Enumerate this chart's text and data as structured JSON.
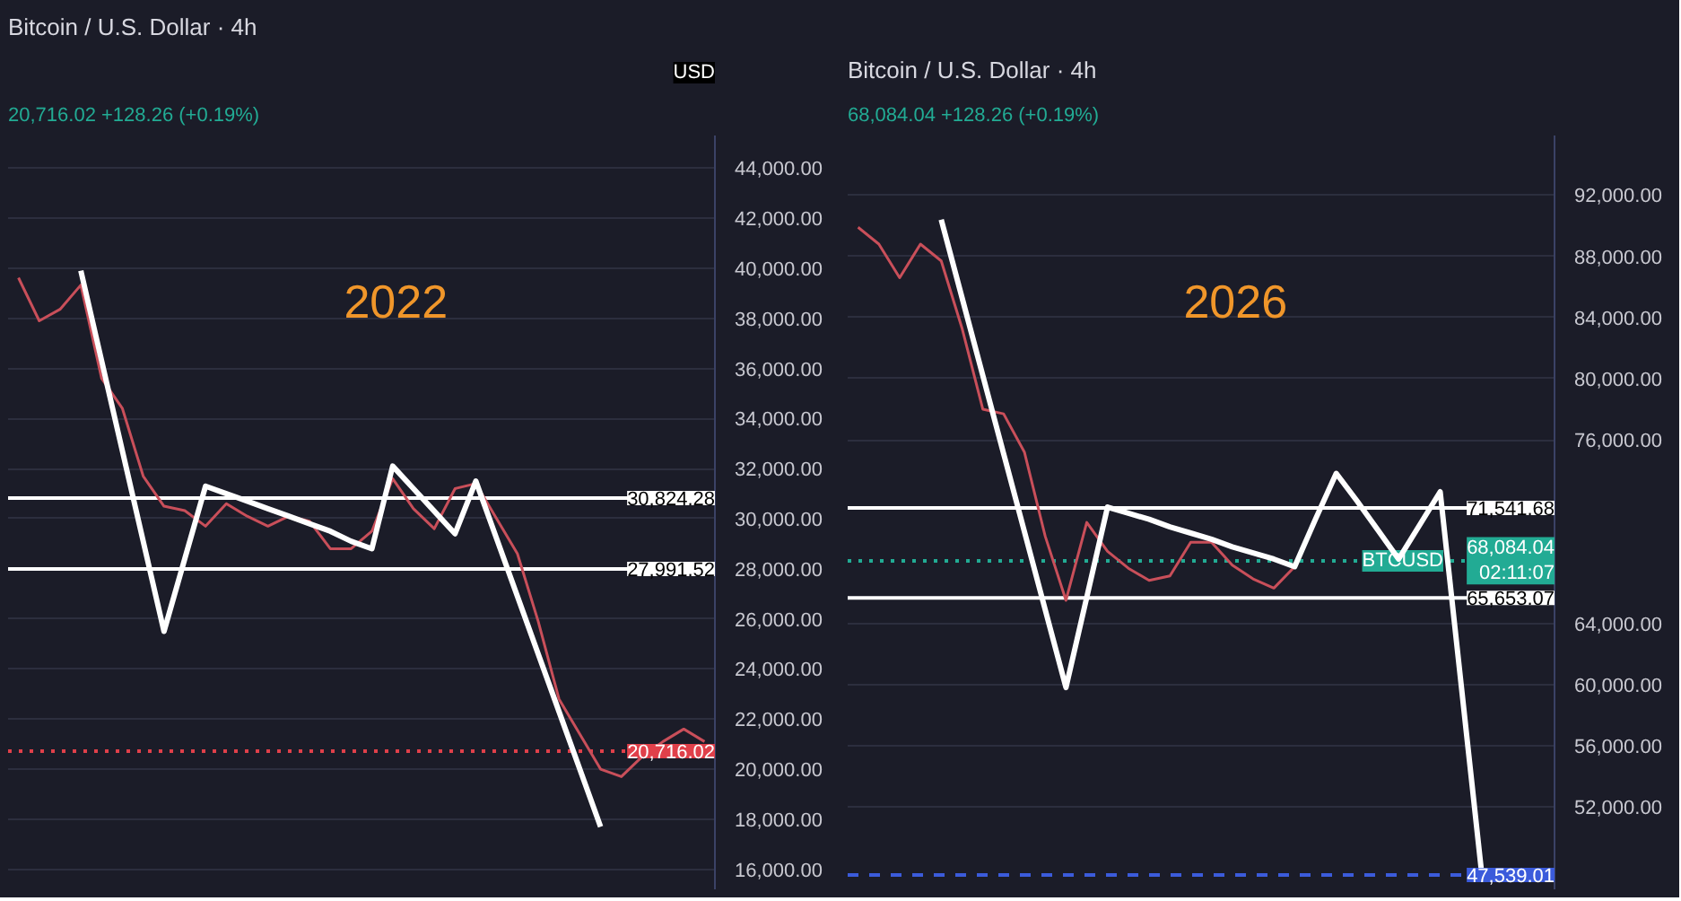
{
  "chart_data": [
    {
      "type": "line",
      "title": "Bitcoin / U.S. Dollar · 4h",
      "subtitle": "20,716.02 +128.26 (+0.19%)",
      "ylabel": "USD",
      "annotations": [
        "2022"
      ],
      "categories": [
        null,
        null,
        null,
        null,
        null,
        null,
        null,
        null,
        null,
        null,
        null,
        null,
        null,
        null,
        null,
        null,
        null,
        null,
        null,
        null,
        null,
        null,
        null,
        null,
        null,
        null,
        null,
        null,
        null,
        null,
        null,
        null,
        null,
        null
      ],
      "ylim": [
        15200,
        45300
      ],
      "tick_labels": "y",
      "grid": "y",
      "yticks": [
        {
          "value": 16000,
          "label": "16,000.00"
        },
        {
          "value": 18000,
          "label": "18,000.00"
        },
        {
          "value": 20000,
          "label": "20,000.00"
        },
        {
          "value": 22000,
          "label": "22,000.00"
        },
        {
          "value": 24000,
          "label": "24,000.00"
        },
        {
          "value": 26000,
          "label": "26,000.00"
        },
        {
          "value": 28000,
          "label": "28,000.00"
        },
        {
          "value": 30000,
          "label": "30,000.00"
        },
        {
          "value": 32000,
          "label": "32,000.00"
        },
        {
          "value": 34000,
          "label": "34,000.00"
        },
        {
          "value": 36000,
          "label": "36,000.00"
        },
        {
          "value": 38000,
          "label": "38,000.00"
        },
        {
          "value": 40000,
          "label": "40,000.00"
        },
        {
          "value": 42000,
          "label": "42,000.00"
        },
        {
          "value": 44000,
          "label": "44,000.00"
        }
      ],
      "series": [
        {
          "color": "#c94f5a",
          "values": [
            39620,
            37900,
            38360,
            39330,
            35600,
            34400,
            31700,
            30500,
            30320,
            29700,
            30600,
            30100,
            29700,
            30100,
            29900,
            28800,
            28800,
            29500,
            31600,
            30400,
            29600,
            31200,
            31400,
            30000,
            28600,
            25900,
            22800,
            21400,
            20000,
            19700,
            20500,
            21100,
            21600,
            21100
          ]
        },
        {
          "color": "#ffffff",
          "values": [
            null,
            null,
            null,
            39900,
            36300,
            32700,
            29100,
            25500,
            28400,
            31300,
            31000,
            30700,
            30400,
            30100,
            29800,
            29500,
            29100,
            28800,
            32100,
            31200,
            30300,
            29400,
            31500,
            29200,
            26900,
            24600,
            22300,
            20000,
            17700,
            null,
            null,
            null,
            null,
            null
          ]
        }
      ],
      "ref_lines": [
        {
          "axis": "y",
          "value": 30824.28,
          "label": "30,824.28",
          "color": "#ffffff",
          "line_style": "solid"
        },
        {
          "axis": "y",
          "value": 27991.52,
          "label": "27,991.52",
          "color": "#ffffff",
          "line_style": "solid"
        },
        {
          "axis": "y",
          "value": 20716.02,
          "label": "20,716.02",
          "color": "#e0404a",
          "line_style": "dotted"
        }
      ]
    },
    {
      "type": "line",
      "title": "Bitcoin / U.S. Dollar · 4h",
      "subtitle": "68,084.04 +128.26 (+0.19%)",
      "annotations": [
        "2026",
        {
          "text": "BTCUSD",
          "y": 68084.04
        }
      ],
      "categories": [
        null,
        null,
        null,
        null,
        null,
        null,
        null,
        null,
        null,
        null,
        null,
        null,
        null,
        null,
        null,
        null,
        null,
        null,
        null,
        null,
        null,
        null,
        null,
        null,
        null,
        null,
        null,
        null,
        null,
        null,
        null,
        null,
        null,
        null
      ],
      "ylim": [
        46600,
        95900
      ],
      "tick_labels": "y",
      "grid": "y",
      "yticks": [
        {
          "value": 52000,
          "label": "52,000.00"
        },
        {
          "value": 56000,
          "label": "56,000.00"
        },
        {
          "value": 60000,
          "label": "60,000.00"
        },
        {
          "value": 64000,
          "label": "64,000.00"
        },
        {
          "value": 76000,
          "label": "76,000.00"
        },
        {
          "value": 80000,
          "label": "80,000.00"
        },
        {
          "value": 84000,
          "label": "84,000.00"
        },
        {
          "value": 88000,
          "label": "88,000.00"
        },
        {
          "value": 92000,
          "label": "92,000.00"
        }
      ],
      "series": [
        {
          "color": "#c94f5a",
          "values": [
            89900,
            88800,
            86600,
            88800,
            87700,
            83300,
            78000,
            77700,
            75200,
            69700,
            65500,
            70600,
            68700,
            67600,
            66800,
            67100,
            69300,
            69300,
            67800,
            66900,
            66300,
            67700,
            null,
            null,
            null,
            null,
            null,
            null,
            null,
            null,
            null,
            null,
            null,
            null
          ]
        },
        {
          "color": "#ffffff",
          "values": [
            null,
            null,
            null,
            null,
            90400,
            85300,
            80200,
            75100,
            70000,
            64900,
            59800,
            65700,
            71600,
            71200,
            70800,
            70300,
            69900,
            69500,
            69000,
            68600,
            68200,
            67700,
            70800,
            73800,
            72000,
            70100,
            68200,
            70400,
            72600,
            60100,
            47600,
            null,
            null,
            null
          ]
        }
      ],
      "ref_lines": [
        {
          "axis": "y",
          "value": 71541.68,
          "label": "71,541.68",
          "color": "#ffffff",
          "line_style": "solid"
        },
        {
          "axis": "y",
          "value": 65653.07,
          "label": "65,653.07",
          "color": "#ffffff",
          "line_style": "solid"
        },
        {
          "axis": "y",
          "value": 68084.04,
          "label": "68,084.04\n02:11:07",
          "color": "#22ab94",
          "line_style": "dotted"
        },
        {
          "axis": "y",
          "value": 47539.01,
          "label": "47,539.01",
          "color": "#3b5bdb",
          "line_style": "dashed"
        }
      ]
    }
  ]
}
